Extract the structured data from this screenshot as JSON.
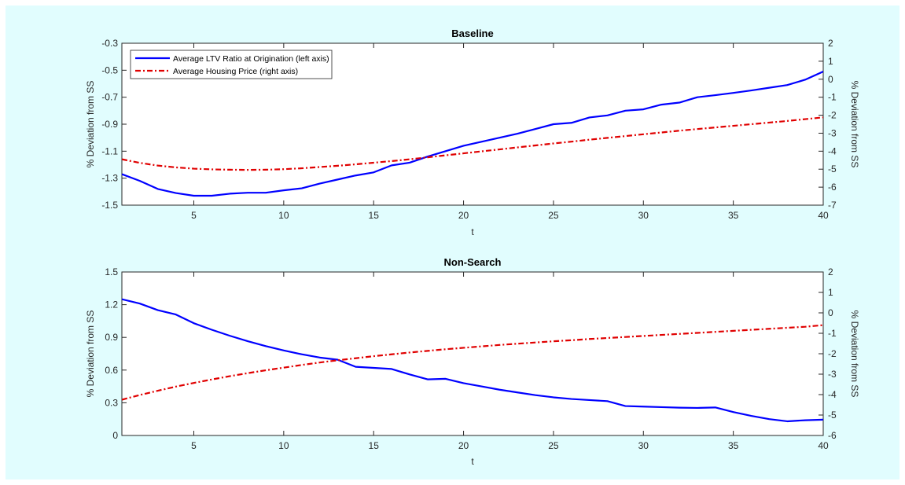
{
  "chart_data": [
    {
      "type": "line",
      "title": "Baseline",
      "xlabel": "t",
      "ylabel_left": "% Deviation from SS",
      "ylabel_right": "% Deviation from SS",
      "xlim": [
        1,
        40
      ],
      "ylim_left": [
        -1.5,
        -0.3
      ],
      "ylim_right": [
        -7,
        2
      ],
      "xticks": [
        5,
        10,
        15,
        20,
        25,
        30,
        35,
        40
      ],
      "yticks_left": [
        -1.5,
        -1.3,
        -1.1,
        -0.9,
        -0.7,
        -0.5,
        -0.3
      ],
      "yticks_right": [
        -7,
        -6,
        -5,
        -4,
        -3,
        -2,
        -1,
        0,
        1,
        2
      ],
      "ytick_labels_left": [
        "-1.5",
        "-1.3",
        "-1.1",
        "-0.9",
        "-0.7",
        "-0.5",
        "-0.3"
      ],
      "ytick_labels_right": [
        "-7",
        "-6",
        "-5",
        "-4",
        "-3",
        "-2",
        "-1",
        "0",
        "1",
        "2"
      ],
      "xtick_labels": [
        "5",
        "10",
        "15",
        "20",
        "25",
        "30",
        "35",
        "40"
      ],
      "legend": {
        "placement": "top-left",
        "entries": [
          "Average LTV Ratio at Origination (left axis)",
          "Average Housing Price (right axis)"
        ]
      },
      "series": [
        {
          "name": "Average LTV Ratio at Origination (left axis)",
          "axis": "left",
          "color": "#0000ff",
          "style": "solid",
          "x": [
            1,
            2,
            3,
            4,
            5,
            6,
            7,
            8,
            9,
            10,
            11,
            12,
            13,
            14,
            15,
            16,
            17,
            18,
            19,
            20,
            21,
            22,
            23,
            24,
            25,
            26,
            27,
            28,
            29,
            30,
            31,
            32,
            33,
            34,
            35,
            36,
            37,
            38,
            39,
            40
          ],
          "values": [
            -1.27,
            -1.32,
            -1.38,
            -1.41,
            -1.43,
            -1.43,
            -1.415,
            -1.408,
            -1.408,
            -1.39,
            -1.375,
            -1.34,
            -1.31,
            -1.28,
            -1.257,
            -1.205,
            -1.185,
            -1.14,
            -1.1,
            -1.06,
            -1.03,
            -1.0,
            -0.97,
            -0.935,
            -0.9,
            -0.89,
            -0.85,
            -0.835,
            -0.8,
            -0.79,
            -0.755,
            -0.74,
            -0.7,
            -0.685,
            -0.668,
            -0.65,
            -0.63,
            -0.61,
            -0.57,
            -0.51
          ]
        },
        {
          "name": "Average Housing Price (right axis)",
          "axis": "right",
          "color": "#e00000",
          "style": "dash-dot",
          "x": [
            1,
            2,
            3,
            4,
            5,
            6,
            7,
            8,
            9,
            10,
            11,
            12,
            13,
            14,
            15,
            16,
            17,
            18,
            19,
            20,
            21,
            22,
            23,
            24,
            25,
            26,
            27,
            28,
            29,
            30,
            31,
            32,
            33,
            34,
            35,
            36,
            37,
            38,
            39,
            40
          ],
          "values": [
            -4.45,
            -4.65,
            -4.8,
            -4.9,
            -4.97,
            -5.01,
            -5.03,
            -5.04,
            -5.03,
            -5.0,
            -4.95,
            -4.88,
            -4.81,
            -4.73,
            -4.64,
            -4.55,
            -4.45,
            -4.34,
            -4.23,
            -4.12,
            -4.01,
            -3.9,
            -3.79,
            -3.68,
            -3.57,
            -3.47,
            -3.36,
            -3.26,
            -3.16,
            -3.06,
            -2.96,
            -2.86,
            -2.77,
            -2.68,
            -2.59,
            -2.5,
            -2.41,
            -2.32,
            -2.22,
            -2.12
          ]
        }
      ]
    },
    {
      "type": "line",
      "title": "Non-Search",
      "xlabel": "t",
      "ylabel_left": "% Deviation from SS",
      "ylabel_right": "% Deviation from SS",
      "xlim": [
        1,
        40
      ],
      "ylim_left": [
        0,
        1.5
      ],
      "ylim_right": [
        -6,
        2
      ],
      "xticks": [
        5,
        10,
        15,
        20,
        25,
        30,
        35,
        40
      ],
      "yticks_left": [
        0,
        0.3,
        0.6,
        0.9,
        1.2,
        1.5
      ],
      "yticks_right": [
        -6,
        -5,
        -4,
        -3,
        -2,
        -1,
        0,
        1,
        2
      ],
      "ytick_labels_left": [
        "0",
        "0.3",
        "0.6",
        "0.9",
        "1.2",
        "1.5"
      ],
      "ytick_labels_right": [
        "-6",
        "-5",
        "-4",
        "-3",
        "-2",
        "-1",
        "0",
        "1",
        "2"
      ],
      "xtick_labels": [
        "5",
        "10",
        "15",
        "20",
        "25",
        "30",
        "35",
        "40"
      ],
      "series": [
        {
          "name": "Average LTV Ratio at Origination (left axis)",
          "axis": "left",
          "color": "#0000ff",
          "style": "solid",
          "x": [
            1,
            2,
            3,
            4,
            5,
            6,
            7,
            8,
            9,
            10,
            11,
            12,
            13,
            14,
            15,
            16,
            17,
            18,
            19,
            20,
            21,
            22,
            23,
            24,
            25,
            26,
            27,
            28,
            29,
            30,
            31,
            32,
            33,
            34,
            35,
            36,
            37,
            38,
            39,
            40
          ],
          "values": [
            1.25,
            1.21,
            1.15,
            1.11,
            1.03,
            0.97,
            0.915,
            0.865,
            0.82,
            0.78,
            0.745,
            0.715,
            0.695,
            0.63,
            0.62,
            0.61,
            0.56,
            0.515,
            0.52,
            0.48,
            0.45,
            0.42,
            0.395,
            0.37,
            0.35,
            0.335,
            0.325,
            0.315,
            0.27,
            0.265,
            0.26,
            0.255,
            0.253,
            0.257,
            0.215,
            0.18,
            0.15,
            0.13,
            0.14,
            0.145
          ]
        },
        {
          "name": "Average Housing Price (right axis)",
          "axis": "right",
          "color": "#e00000",
          "style": "dash-dot",
          "x": [
            1,
            2,
            3,
            4,
            5,
            6,
            7,
            8,
            9,
            10,
            11,
            12,
            13,
            14,
            15,
            16,
            17,
            18,
            19,
            20,
            21,
            22,
            23,
            24,
            25,
            26,
            27,
            28,
            29,
            30,
            31,
            32,
            33,
            34,
            35,
            36,
            37,
            38,
            39,
            40
          ],
          "values": [
            -4.25,
            -4.02,
            -3.81,
            -3.61,
            -3.43,
            -3.26,
            -3.1,
            -2.95,
            -2.81,
            -2.68,
            -2.55,
            -2.43,
            -2.32,
            -2.22,
            -2.12,
            -2.03,
            -1.94,
            -1.86,
            -1.78,
            -1.71,
            -1.64,
            -1.57,
            -1.51,
            -1.45,
            -1.39,
            -1.34,
            -1.28,
            -1.23,
            -1.18,
            -1.13,
            -1.08,
            -1.03,
            -0.98,
            -0.93,
            -0.88,
            -0.83,
            -0.78,
            -0.73,
            -0.68,
            -0.6
          ]
        }
      ]
    }
  ]
}
